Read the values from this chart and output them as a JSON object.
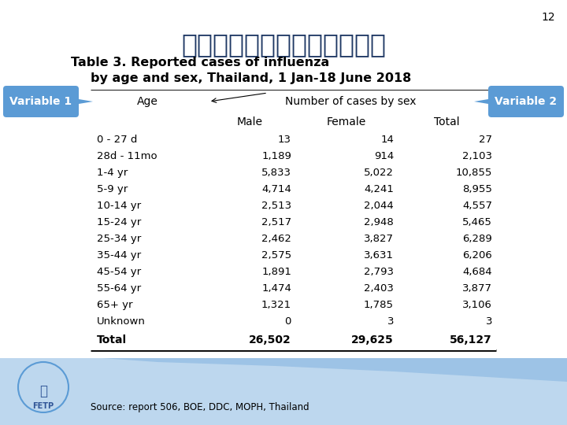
{
  "title_thai": "ตารางสองตวแปร",
  "title_line1": "Table 3. Reported cases of influenza",
  "title_line2": "    by age and sex, Thailand, 1 Jan-18 June 2018",
  "slide_number": "12",
  "variable1_label": "Variable 1",
  "variable2_label": "Variable 2",
  "col_header1": "Age",
  "col_header2": "Number of cases by sex",
  "col_sub1": "Male",
  "col_sub2": "Female",
  "col_sub3": "Total",
  "rows": [
    [
      "0 - 27 d",
      "13",
      "14",
      "27"
    ],
    [
      "28d - 11mo",
      "1,189",
      "914",
      "2,103"
    ],
    [
      "1-4 yr",
      "5,833",
      "5,022",
      "10,855"
    ],
    [
      "5-9 yr",
      "4,714",
      "4,241",
      "8,955"
    ],
    [
      "10-14 yr",
      "2,513",
      "2,044",
      "4,557"
    ],
    [
      "15-24 yr",
      "2,517",
      "2,948",
      "5,465"
    ],
    [
      "25-34 yr",
      "2,462",
      "3,827",
      "6,289"
    ],
    [
      "35-44 yr",
      "2,575",
      "3,631",
      "6,206"
    ],
    [
      "45-54 yr",
      "1,891",
      "2,793",
      "4,684"
    ],
    [
      "55-64 yr",
      "1,474",
      "2,403",
      "3,877"
    ],
    [
      "65+ yr",
      "1,321",
      "1,785",
      "3,106"
    ],
    [
      "Unknown",
      "0",
      "3",
      "3"
    ]
  ],
  "total_row": [
    "Total",
    "26,502",
    "29,625",
    "56,127"
  ],
  "source_text": "Source: report 506, BOE, DDC, MOPH, Thailand",
  "bg_color": "#ffffff",
  "bubble_color": "#5B9BD5",
  "title_thai_color": "#1F3864",
  "footer_bg": "#BDD7EE",
  "footer_wave_color": "#9DC3E6"
}
